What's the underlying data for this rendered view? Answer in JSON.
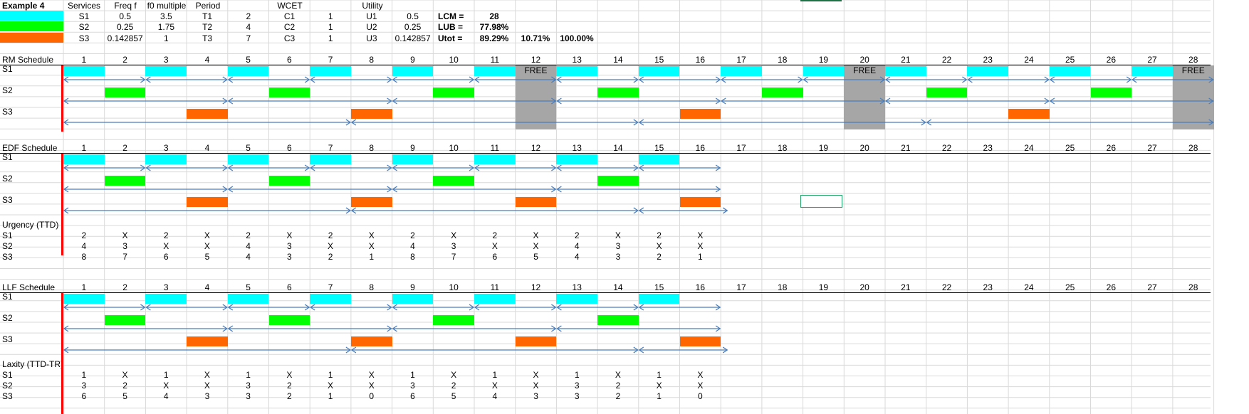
{
  "example_title": "Example 4",
  "header_labels": [
    "Services",
    "Freq f",
    "f0 multiple",
    "Period",
    "WCET",
    "Utility"
  ],
  "services": [
    {
      "name": "S1",
      "freq": "0.5",
      "f0_multiple": "3.5",
      "period_label": "T1",
      "period": "2",
      "wcet_label": "C1",
      "wcet": "1",
      "utility_label": "U1",
      "utility": "0.5"
    },
    {
      "name": "S2",
      "freq": "0.25",
      "f0_multiple": "1.75",
      "period_label": "T2",
      "period": "4",
      "wcet_label": "C2",
      "wcet": "1",
      "utility_label": "U2",
      "utility": "0.25"
    },
    {
      "name": "S3",
      "freq": "0.142857",
      "f0_multiple": "1",
      "period_label": "T3",
      "period": "7",
      "wcet_label": "C3",
      "wcet": "1",
      "utility_label": "U3",
      "utility": "0.142857"
    }
  ],
  "summary": {
    "lcm_label": "LCM =",
    "lcm": "28",
    "lub_label": "LUB =",
    "lub": "77.98%",
    "utot_label": "Utot =",
    "utot": "89.29%",
    "spare": "10.71%",
    "total": "100.00%"
  },
  "colors": {
    "S1": "#00ffff",
    "S2": "#00ff00",
    "S3": "#ff6600",
    "free": "#a6a6a6",
    "arrow": "#4a7ebb",
    "divider": "#ff0000"
  },
  "free_label": "FREE",
  "time_slots": [
    "1",
    "2",
    "3",
    "4",
    "5",
    "6",
    "7",
    "8",
    "9",
    "10",
    "11",
    "12",
    "13",
    "14",
    "15",
    "16",
    "17",
    "18",
    "19",
    "20",
    "21",
    "22",
    "23",
    "24",
    "25",
    "26",
    "27",
    "28"
  ],
  "rm": {
    "title": "RM Schedule",
    "rows": [
      "S1",
      "S2",
      "S3"
    ],
    "blocks": {
      "S1": [
        1,
        3,
        5,
        7,
        9,
        11,
        13,
        15,
        17,
        19,
        21,
        23,
        25,
        27
      ],
      "S2": [
        2,
        6,
        10,
        14,
        18,
        22,
        26
      ],
      "S3": [
        4,
        8,
        16,
        24
      ]
    },
    "free_slots": [
      12,
      20,
      28
    ]
  },
  "edf": {
    "title": "EDF Schedule",
    "rows": [
      "S1",
      "S2",
      "S3"
    ],
    "blocks": {
      "S1": [
        1,
        3,
        5,
        7,
        9,
        11,
        13,
        15
      ],
      "S2": [
        2,
        6,
        10,
        14
      ],
      "S3": [
        4,
        8,
        12,
        16
      ]
    },
    "metric_title": "Urgency (TTD)",
    "metric_rows": [
      {
        "name": "S1",
        "values": [
          "2",
          "X",
          "2",
          "X",
          "2",
          "X",
          "2",
          "X",
          "2",
          "X",
          "2",
          "X",
          "2",
          "X",
          "2",
          "X"
        ]
      },
      {
        "name": "S2",
        "values": [
          "4",
          "3",
          "X",
          "X",
          "4",
          "3",
          "X",
          "X",
          "4",
          "3",
          "X",
          "X",
          "4",
          "3",
          "X",
          "X"
        ]
      },
      {
        "name": "S3",
        "values": [
          "8",
          "7",
          "6",
          "5",
          "4",
          "3",
          "2",
          "1",
          "8",
          "7",
          "6",
          "5",
          "4",
          "3",
          "2",
          "1"
        ]
      }
    ]
  },
  "llf": {
    "title": "LLF Schedule",
    "rows": [
      "S1",
      "S2",
      "S3"
    ],
    "blocks": {
      "S1": [
        1,
        3,
        5,
        7,
        9,
        11,
        13,
        15
      ],
      "S2": [
        2,
        6,
        10,
        14
      ],
      "S3": [
        4,
        8,
        12,
        16
      ]
    },
    "metric_title": "Laxity (TTD-TR)",
    "metric_rows": [
      {
        "name": "S1",
        "values": [
          "1",
          "X",
          "1",
          "X",
          "1",
          "X",
          "1",
          "X",
          "1",
          "X",
          "1",
          "X",
          "1",
          "X",
          "1",
          "X"
        ]
      },
      {
        "name": "S2",
        "values": [
          "3",
          "2",
          "X",
          "X",
          "3",
          "2",
          "X",
          "X",
          "3",
          "2",
          "X",
          "X",
          "3",
          "2",
          "X",
          "X"
        ]
      },
      {
        "name": "S3",
        "values": [
          "6",
          "5",
          "4",
          "3",
          "3",
          "2",
          "1",
          "0",
          "6",
          "5",
          "4",
          "3",
          "3",
          "2",
          "1",
          "0"
        ]
      }
    ]
  }
}
